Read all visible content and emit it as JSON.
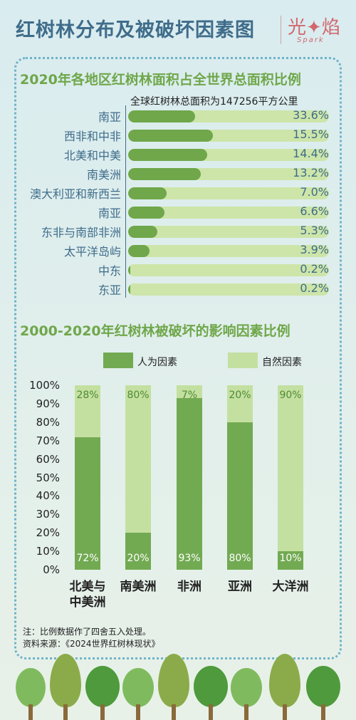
{
  "header": {
    "title": "红树林分布及被破坏因素图",
    "logo": "光✦焰",
    "logo_sub": "Spark"
  },
  "section1": {
    "title": "2020年各地区红树林面积占全世界总面积比例",
    "total_note": "全球红树林总面积为147256平方公里"
  },
  "section2": {
    "title": "2000-2020年红树林被破坏的影响因素比例"
  },
  "chart_data": [
    {
      "type": "bar",
      "orientation": "horizontal",
      "title": "2020年各地区红树林面积占全世界总面积比例",
      "categories": [
        "南亚",
        "西非和中非",
        "北美和中美",
        "南美洲",
        "澳大利亚和新西兰",
        "南亚",
        "东非与南部非洲",
        "太平洋岛屿",
        "中东",
        "东亚"
      ],
      "values": [
        33.6,
        15.5,
        14.4,
        13.2,
        7.0,
        6.6,
        5.3,
        3.9,
        0.2,
        0.2
      ],
      "value_labels": [
        "33.6%",
        "15.5%",
        "14.4%",
        "13.2%",
        "7.0%",
        "6.6%",
        "5.3%",
        "3.9%",
        "0.2%",
        "0.2%"
      ],
      "xlim": [
        0,
        100
      ]
    },
    {
      "type": "bar",
      "stacked": true,
      "title": "2000-2020年红树林被破坏的影响因素比例",
      "categories": [
        "北美与中美洲",
        "南美洲",
        "非洲",
        "亚洲",
        "大洋洲"
      ],
      "category_lines": [
        [
          "北美与",
          "中美洲"
        ],
        [
          "南美洲"
        ],
        [
          "非洲"
        ],
        [
          "亚洲"
        ],
        [
          "大洋洲"
        ]
      ],
      "series": [
        {
          "name": "人为因素",
          "values": [
            72,
            20,
            93,
            80,
            10
          ],
          "color": "#72aa52"
        },
        {
          "name": "自然因素",
          "values": [
            28,
            80,
            7,
            20,
            90
          ],
          "color": "#c4e0a0"
        }
      ],
      "yticks": [
        "0%",
        "10%",
        "20%",
        "30%",
        "40%",
        "50%",
        "60%",
        "70%",
        "80%",
        "90%",
        "100%"
      ],
      "ylim": [
        0,
        100
      ],
      "legend_position": "top"
    }
  ],
  "notes": [
    "注：比例数据作了四舍五入处理。",
    "资料来源：《2024世界红树林现状》"
  ]
}
